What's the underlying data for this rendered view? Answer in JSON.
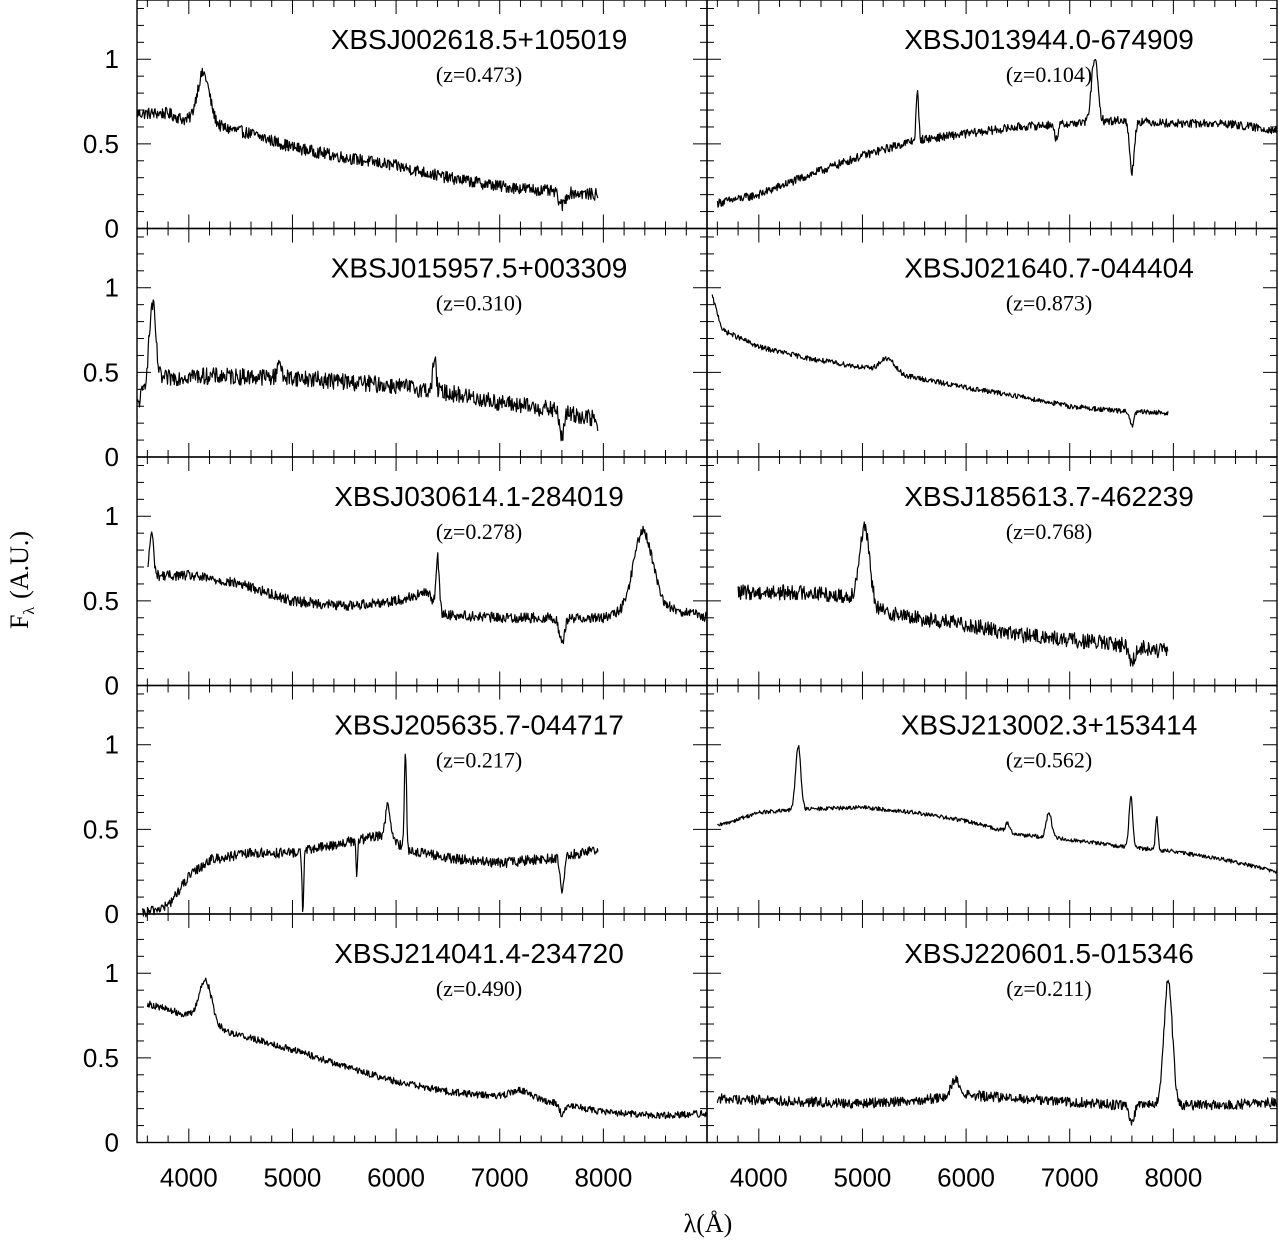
{
  "figure": {
    "xlabel": "λ(Å)",
    "ylabel": "F",
    "ylabel_sub": "λ",
    "ylabel_unit": "(A.U.)",
    "xlim": [
      3500,
      9000
    ],
    "ylim": [
      0,
      1.35
    ],
    "x_ticks": [
      "4000",
      "5000",
      "6000",
      "7000",
      "8000"
    ],
    "y_ticks": [
      "0",
      "0.5",
      "1"
    ],
    "grid": false,
    "line_color": "#000000"
  },
  "chart_data": [
    {
      "type": "line",
      "name": "XBSJ002618.5+105019",
      "redshift": "(z=0.473)",
      "x_range": [
        3500,
        7950
      ],
      "noise": 0.035,
      "continuum": [
        [
          3500,
          0.68
        ],
        [
          3800,
          0.68
        ],
        [
          4000,
          0.63
        ],
        [
          4300,
          0.6
        ],
        [
          4600,
          0.56
        ],
        [
          5000,
          0.48
        ],
        [
          5500,
          0.42
        ],
        [
          6000,
          0.37
        ],
        [
          6500,
          0.3
        ],
        [
          7000,
          0.25
        ],
        [
          7500,
          0.22
        ],
        [
          7950,
          0.2
        ]
      ],
      "lines": [
        [
          4140,
          0.3,
          60
        ]
      ],
      "absorptions": [
        [
          7600,
          0.08,
          30
        ]
      ]
    },
    {
      "type": "line",
      "name": "XBSJ013944.0-674909",
      "redshift": "(z=0.104)",
      "x_range": [
        3600,
        9000
      ],
      "noise": 0.025,
      "continuum": [
        [
          3600,
          0.15
        ],
        [
          4000,
          0.2
        ],
        [
          4500,
          0.32
        ],
        [
          5000,
          0.43
        ],
        [
          5500,
          0.52
        ],
        [
          6000,
          0.56
        ],
        [
          6500,
          0.6
        ],
        [
          7000,
          0.62
        ],
        [
          7500,
          0.64
        ],
        [
          8000,
          0.62
        ],
        [
          8500,
          0.62
        ],
        [
          9000,
          0.58
        ]
      ],
      "lines": [
        [
          5530,
          0.28,
          12
        ],
        [
          7240,
          0.38,
          30
        ]
      ],
      "absorptions": [
        [
          7600,
          0.3,
          22
        ],
        [
          6870,
          0.08,
          18
        ]
      ]
    },
    {
      "type": "line",
      "name": "XBSJ015957.5+003309",
      "redshift": "(z=0.310)",
      "x_range": [
        3500,
        7950
      ],
      "noise": 0.05,
      "continuum": [
        [
          3500,
          0.3
        ],
        [
          3600,
          0.45
        ],
        [
          4000,
          0.48
        ],
        [
          5000,
          0.47
        ],
        [
          6000,
          0.42
        ],
        [
          6500,
          0.38
        ],
        [
          7000,
          0.32
        ],
        [
          7500,
          0.28
        ],
        [
          7950,
          0.22
        ]
      ],
      "lines": [
        [
          3650,
          0.45,
          30
        ],
        [
          4870,
          0.12,
          15
        ],
        [
          6370,
          0.2,
          15
        ]
      ],
      "absorptions": [
        [
          7600,
          0.15,
          20
        ],
        [
          7950,
          0.1,
          10
        ]
      ]
    },
    {
      "type": "line",
      "name": "XBSJ021640.7-044404",
      "redshift": "(z=0.873)",
      "x_range": [
        3550,
        7950
      ],
      "noise": 0.015,
      "continuum": [
        [
          3550,
          0.95
        ],
        [
          3650,
          0.75
        ],
        [
          4000,
          0.65
        ],
        [
          4500,
          0.58
        ],
        [
          5000,
          0.53
        ],
        [
          5500,
          0.47
        ],
        [
          6000,
          0.41
        ],
        [
          6500,
          0.36
        ],
        [
          7000,
          0.3
        ],
        [
          7500,
          0.27
        ],
        [
          7950,
          0.26
        ]
      ],
      "lines": [
        [
          5240,
          0.08,
          70
        ]
      ],
      "absorptions": [
        [
          7600,
          0.08,
          20
        ]
      ]
    },
    {
      "type": "line",
      "name": "XBSJ030614.1-284019",
      "redshift": "(z=0.278)",
      "x_range": [
        3600,
        9000
      ],
      "noise": 0.03,
      "continuum": [
        [
          3600,
          0.65
        ],
        [
          4000,
          0.65
        ],
        [
          4500,
          0.6
        ],
        [
          5000,
          0.5
        ],
        [
          5500,
          0.47
        ],
        [
          6000,
          0.5
        ],
        [
          6300,
          0.55
        ],
        [
          6450,
          0.42
        ],
        [
          7000,
          0.4
        ],
        [
          7500,
          0.4
        ],
        [
          8000,
          0.4
        ],
        [
          8500,
          0.48
        ],
        [
          9000,
          0.4
        ]
      ],
      "lines": [
        [
          3640,
          0.25,
          20
        ],
        [
          6400,
          0.3,
          15
        ],
        [
          8380,
          0.45,
          90
        ]
      ],
      "absorptions": [
        [
          7600,
          0.15,
          25
        ]
      ]
    },
    {
      "type": "line",
      "name": "XBSJ185613.7-462239",
      "redshift": "(z=0.768)",
      "x_range": [
        3800,
        7950
      ],
      "noise": 0.045,
      "continuum": [
        [
          3800,
          0.55
        ],
        [
          4500,
          0.55
        ],
        [
          4900,
          0.52
        ],
        [
          5100,
          0.45
        ],
        [
          5500,
          0.4
        ],
        [
          6000,
          0.36
        ],
        [
          6500,
          0.3
        ],
        [
          7000,
          0.27
        ],
        [
          7500,
          0.24
        ],
        [
          7950,
          0.2
        ]
      ],
      "lines": [
        [
          5020,
          0.45,
          50
        ]
      ],
      "absorptions": [
        [
          7600,
          0.1,
          25
        ]
      ]
    },
    {
      "type": "line",
      "name": "XBSJ205635.7-044717",
      "redshift": "(z=0.217)",
      "x_range": [
        3550,
        7950
      ],
      "noise": 0.03,
      "continuum": [
        [
          3550,
          0.0
        ],
        [
          3800,
          0.05
        ],
        [
          4000,
          0.22
        ],
        [
          4200,
          0.32
        ],
        [
          4600,
          0.36
        ],
        [
          5000,
          0.36
        ],
        [
          5500,
          0.42
        ],
        [
          5900,
          0.47
        ],
        [
          6100,
          0.38
        ],
        [
          6500,
          0.33
        ],
        [
          7000,
          0.3
        ],
        [
          7500,
          0.33
        ],
        [
          7950,
          0.38
        ]
      ],
      "lines": [
        [
          5920,
          0.2,
          20
        ],
        [
          6090,
          0.6,
          10
        ]
      ],
      "absorptions": [
        [
          5100,
          0.35,
          8
        ],
        [
          5620,
          0.2,
          8
        ],
        [
          7600,
          0.2,
          20
        ]
      ]
    },
    {
      "type": "line",
      "name": "XBSJ213002.3+153414",
      "redshift": "(z=0.562)",
      "x_range": [
        3600,
        9000
      ],
      "noise": 0.012,
      "continuum": [
        [
          3600,
          0.52
        ],
        [
          4000,
          0.6
        ],
        [
          4500,
          0.62
        ],
        [
          5000,
          0.63
        ],
        [
          5500,
          0.6
        ],
        [
          6000,
          0.55
        ],
        [
          6500,
          0.47
        ],
        [
          7000,
          0.44
        ],
        [
          7500,
          0.4
        ],
        [
          8000,
          0.37
        ],
        [
          8500,
          0.32
        ],
        [
          9000,
          0.25
        ]
      ],
      "lines": [
        [
          4380,
          0.38,
          25
        ],
        [
          6800,
          0.15,
          25
        ],
        [
          7590,
          0.3,
          18
        ],
        [
          7840,
          0.2,
          12
        ],
        [
          6400,
          0.05,
          20
        ]
      ],
      "absorptions": []
    },
    {
      "type": "line",
      "name": "XBSJ214041.4-234720",
      "redshift": "(z=0.490)",
      "x_range": [
        3600,
        9000
      ],
      "noise": 0.02,
      "continuum": [
        [
          3600,
          0.82
        ],
        [
          4000,
          0.75
        ],
        [
          4400,
          0.65
        ],
        [
          4700,
          0.6
        ],
        [
          5000,
          0.55
        ],
        [
          5500,
          0.45
        ],
        [
          6000,
          0.36
        ],
        [
          6500,
          0.3
        ],
        [
          7000,
          0.27
        ],
        [
          7500,
          0.24
        ],
        [
          8000,
          0.18
        ],
        [
          8500,
          0.16
        ],
        [
          9000,
          0.17
        ]
      ],
      "lines": [
        [
          4160,
          0.25,
          60
        ],
        [
          7200,
          0.05,
          100
        ]
      ],
      "absorptions": [
        [
          7600,
          0.06,
          25
        ]
      ]
    },
    {
      "type": "line",
      "name": "XBSJ220601.5-015346",
      "redshift": "(z=0.211)",
      "x_range": [
        3600,
        9000
      ],
      "noise": 0.03,
      "continuum": [
        [
          3600,
          0.26
        ],
        [
          4500,
          0.24
        ],
        [
          5000,
          0.23
        ],
        [
          5500,
          0.25
        ],
        [
          6000,
          0.28
        ],
        [
          6500,
          0.26
        ],
        [
          7000,
          0.24
        ],
        [
          7500,
          0.22
        ],
        [
          8000,
          0.22
        ],
        [
          8500,
          0.22
        ],
        [
          9000,
          0.24
        ]
      ],
      "lines": [
        [
          7950,
          0.75,
          40
        ],
        [
          5900,
          0.1,
          40
        ]
      ],
      "absorptions": [
        [
          7600,
          0.1,
          25
        ]
      ]
    }
  ]
}
